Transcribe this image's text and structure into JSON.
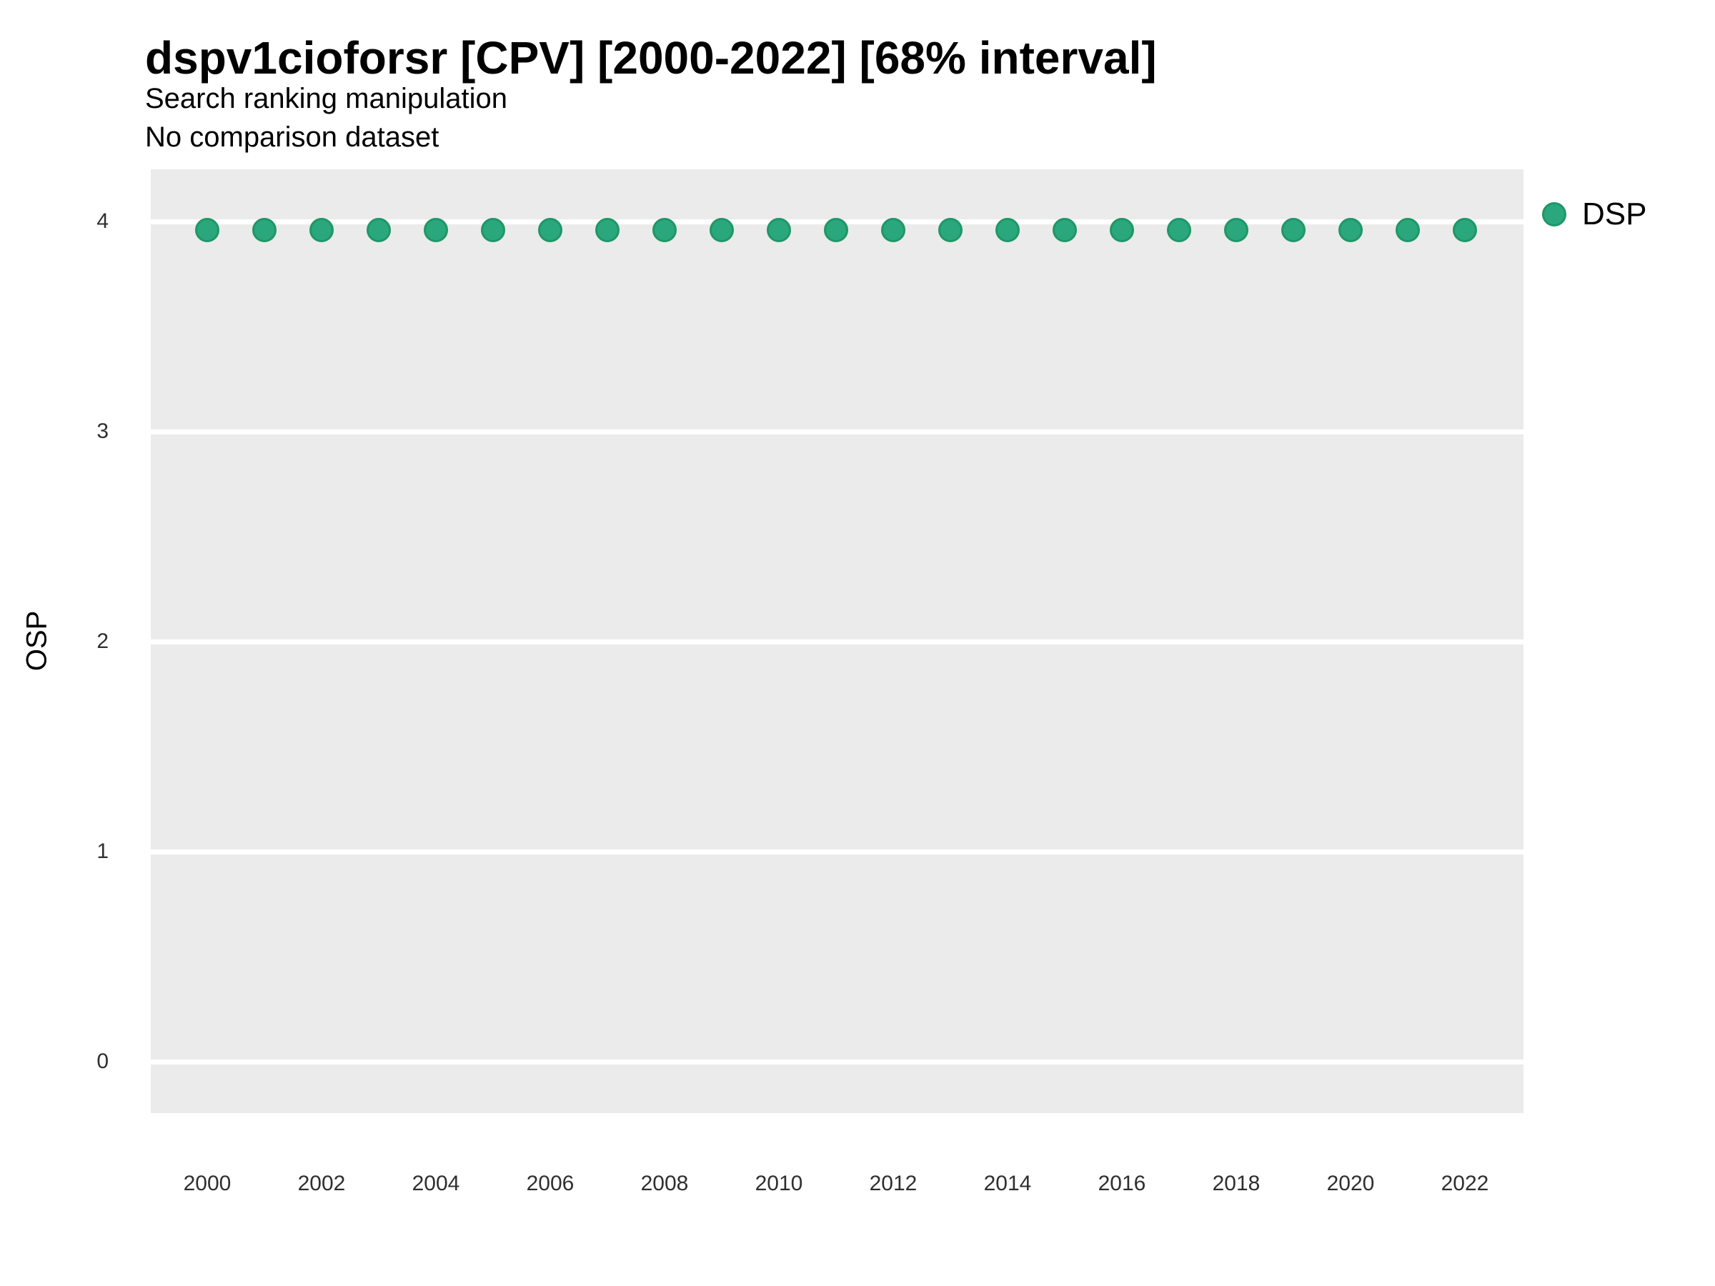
{
  "chart_data": {
    "type": "scatter",
    "title": "dspv1cioforsr [CPV] [2000-2022] [68% interval]",
    "subtitle": "Search ranking manipulation",
    "subtitle2": "No comparison dataset",
    "xlabel": "",
    "ylabel": "OSP",
    "x_tick_labels": [
      2000,
      2002,
      2004,
      2006,
      2008,
      2010,
      2012,
      2014,
      2016,
      2018,
      2020,
      2022
    ],
    "y_tick_labels": [
      0,
      1,
      2,
      3,
      4
    ],
    "xlim": [
      1999,
      2023
    ],
    "ylim": [
      -0.25,
      4.27
    ],
    "grid": "major horizontal white lines on gray panel",
    "legend_position": "right",
    "series": [
      {
        "name": "DSP",
        "x": [
          2000,
          2001,
          2002,
          2003,
          2004,
          2005,
          2006,
          2007,
          2008,
          2009,
          2010,
          2011,
          2012,
          2013,
          2014,
          2015,
          2016,
          2017,
          2018,
          2019,
          2020,
          2021,
          2022
        ],
        "y": [
          3.96,
          3.96,
          3.96,
          3.96,
          3.96,
          3.96,
          3.96,
          3.96,
          3.96,
          3.96,
          3.96,
          3.96,
          3.96,
          3.96,
          3.96,
          3.96,
          3.96,
          3.96,
          3.96,
          3.96,
          3.96,
          3.96,
          3.96
        ]
      }
    ]
  },
  "colors": {
    "dot_fill": "#2aa77c",
    "dot_stroke": "#1f9768",
    "panel_bg": "#ebebeb",
    "gridline": "#ffffff"
  },
  "legend": {
    "label": "DSP"
  }
}
